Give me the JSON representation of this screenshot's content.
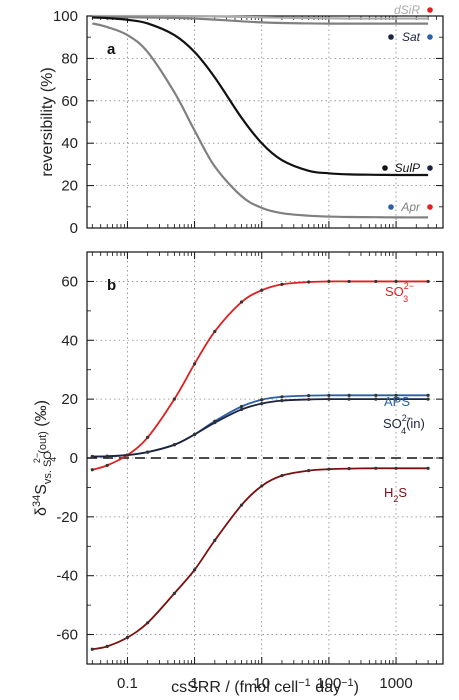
{
  "colors": {
    "black": "#111111",
    "gray": "#808080",
    "lightgray": "#aaaaaa",
    "red": "#e02020",
    "darkred": "#7a1010",
    "blue": "#2b5fa8",
    "navy": "#1c2340",
    "dashed": "#111111"
  },
  "chart_data": [
    {
      "type": "line",
      "panel": "a",
      "xscale": "log",
      "xlim": [
        0.025,
        5000
      ],
      "ylim": [
        0,
        100
      ],
      "ylabel": "reversibility (%)",
      "yticks": [
        0,
        20,
        40,
        60,
        80,
        100
      ],
      "grid": true,
      "x": [
        0.03,
        0.05,
        0.1,
        0.2,
        0.5,
        1,
        2,
        5,
        10,
        20,
        50,
        100,
        200,
        500,
        1000,
        3000
      ],
      "series": [
        {
          "name": "dSiR",
          "color": "lightgray",
          "values": [
            100,
            100,
            100,
            100,
            100,
            99.9,
            99.8,
            99.6,
            99.4,
            99.2,
            99,
            98.9,
            98.8,
            98.8,
            98.8,
            98.8
          ]
        },
        {
          "name": "Sat",
          "color": "gray",
          "values": [
            99.5,
            99.5,
            99.4,
            99.3,
            99.1,
            98.8,
            98.3,
            97.5,
            97,
            96.7,
            96.5,
            96.4,
            96.4,
            96.4,
            96.4,
            96.4
          ]
        },
        {
          "name": "SulP",
          "color": "black",
          "values": [
            99.3,
            99,
            98.2,
            96.5,
            91,
            83,
            71,
            52,
            40,
            32,
            27,
            25.8,
            25.3,
            25.1,
            25,
            25
          ]
        },
        {
          "name": "Apr",
          "color": "gray",
          "values": [
            96.5,
            94.8,
            91,
            83,
            64,
            46,
            29,
            15,
            9.5,
            7,
            5.8,
            5.4,
            5.2,
            5.1,
            5,
            5
          ]
        }
      ],
      "legend": [
        {
          "name": "dSiR",
          "text_color": "lightgray",
          "dot_left": "",
          "dot_right": "red"
        },
        {
          "name": "Sat",
          "text_color": "navy",
          "dot_left": "navy",
          "dot_right": "blue"
        },
        {
          "name": "SulP",
          "text_color": "black",
          "dot_left": "black",
          "dot_right": "navy"
        },
        {
          "name": "Apr",
          "text_color": "gray",
          "dot_left": "blue",
          "dot_right": "red"
        }
      ]
    },
    {
      "type": "line",
      "panel": "b",
      "xscale": "log",
      "xlim": [
        0.025,
        5000
      ],
      "ylim": [
        -70,
        70
      ],
      "xlabel": "csSRR / (fmol cell⁻¹ day⁻¹)",
      "ylabel": "δ³⁴S vs. SO₄²⁻ (out) (‰)",
      "yticks": [
        -60,
        -40,
        -20,
        0,
        20,
        40,
        60
      ],
      "xticks": [
        0.1,
        1,
        10,
        100,
        1000
      ],
      "xticklabels": [
        "0.1",
        "1",
        "10",
        "100",
        "1000"
      ],
      "grid": true,
      "x": [
        0.03,
        0.05,
        0.1,
        0.2,
        0.5,
        1,
        2,
        5,
        10,
        20,
        50,
        100,
        200,
        500,
        1000,
        3000
      ],
      "series": [
        {
          "name": "SO₃²⁻",
          "color": "red",
          "values": [
            -4,
            -2.5,
            1,
            7,
            20,
            32,
            43,
            53,
            57,
            59,
            59.8,
            60,
            60,
            60,
            60,
            60
          ]
        },
        {
          "name": "APS",
          "color": "blue",
          "values": [
            0.5,
            0.6,
            1,
            2,
            4.5,
            8,
            12.5,
            17.5,
            19.8,
            20.8,
            21.2,
            21.3,
            21.3,
            21.3,
            21.3,
            21.3
          ]
        },
        {
          "name": "SO₄²⁻ (in)",
          "color": "navy",
          "values": [
            0.5,
            0.6,
            1,
            2,
            4.5,
            8,
            12,
            16.5,
            18.5,
            19.5,
            19.9,
            20,
            20,
            20,
            20,
            20
          ]
        },
        {
          "name": "H₂S",
          "color": "darkred",
          "values": [
            -65,
            -64,
            -61,
            -56,
            -46,
            -38,
            -28,
            -16,
            -9.5,
            -6,
            -4.3,
            -3.8,
            -3.6,
            -3.5,
            -3.5,
            -3.5
          ]
        }
      ],
      "series_labels": [
        "SO",
        "APS",
        "SO",
        "H"
      ],
      "baseline": 0
    }
  ]
}
